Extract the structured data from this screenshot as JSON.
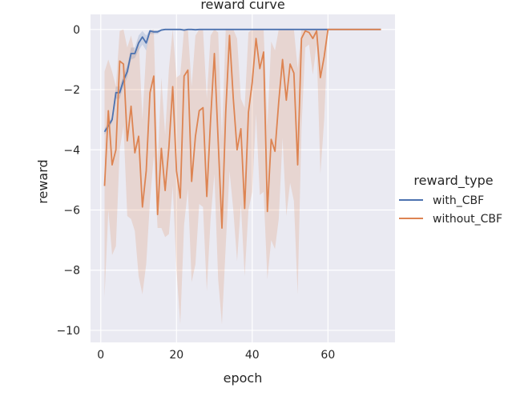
{
  "chart_data": {
    "type": "line",
    "title": "reward curve",
    "xlabel": "epoch",
    "ylabel": "reward",
    "xlim": [
      -2.7,
      77.7
    ],
    "ylim": [
      -10.4,
      0.5
    ],
    "xticks": [
      0,
      20,
      40,
      60
    ],
    "yticks": [
      0,
      -2,
      -4,
      -6,
      -8,
      -10
    ],
    "xtick_labels": [
      "0",
      "20",
      "40",
      "60"
    ],
    "ytick_labels": [
      "0",
      "−2",
      "−4",
      "−6",
      "−8",
      "−10"
    ],
    "grid": true,
    "legend": {
      "title": "reward_type",
      "placement": "right"
    },
    "series": [
      {
        "name": "with_CBF",
        "color": "#4c72b0",
        "x": [
          1,
          2,
          3,
          4,
          5,
          6,
          7,
          8,
          9,
          10,
          11,
          12,
          13,
          14,
          15,
          16,
          17,
          18,
          19,
          20,
          21,
          22,
          23,
          24,
          25,
          26,
          27,
          28,
          29,
          30,
          31,
          32,
          33,
          34,
          35,
          36,
          37,
          38,
          39,
          40,
          41,
          42,
          43,
          44,
          45,
          46,
          47,
          48,
          49,
          50,
          51,
          52,
          53,
          54,
          55,
          56,
          57,
          58,
          59,
          60,
          61,
          62,
          63,
          64,
          65,
          66,
          67,
          68,
          69,
          70,
          71,
          72,
          73,
          74
        ],
        "y": [
          -3.4,
          -3.2,
          -3.0,
          -2.1,
          -2.1,
          -1.7,
          -1.4,
          -0.8,
          -0.8,
          -0.45,
          -0.25,
          -0.45,
          -0.05,
          -0.08,
          -0.08,
          -0.02,
          0,
          0,
          0,
          0,
          0,
          -0.02,
          0,
          0,
          -0.01,
          0,
          0,
          0,
          0,
          0,
          0,
          0,
          0,
          0,
          0,
          0,
          0,
          0,
          0,
          0,
          0,
          0,
          0,
          0,
          0,
          0,
          0,
          0,
          0,
          0,
          0,
          0,
          0,
          0,
          0,
          0,
          0,
          0,
          0,
          0,
          0,
          0,
          0,
          0,
          0,
          0,
          0,
          0,
          0,
          0,
          0,
          0,
          0,
          0
        ],
        "ci_lower": [
          -3.5,
          -3.3,
          -3.1,
          -2.3,
          -2.3,
          -1.9,
          -1.6,
          -1.0,
          -0.95,
          -0.7,
          -0.5,
          -0.7,
          -0.15,
          -0.15,
          -0.15,
          -0.05,
          -0.01,
          -0.01,
          -0.01,
          -0.01,
          -0.01,
          -0.04,
          -0.01,
          -0.01,
          -0.02,
          0,
          0,
          0,
          0,
          0,
          0,
          0,
          0,
          0,
          0,
          0,
          0,
          0,
          0,
          0,
          0,
          0,
          0,
          0,
          0,
          0,
          0,
          0,
          0,
          0,
          0,
          0,
          0,
          0,
          0,
          0,
          0,
          0,
          0,
          0,
          0,
          0,
          0,
          0,
          0,
          0,
          0,
          0,
          0,
          0,
          0,
          0,
          0,
          0
        ],
        "ci_upper": [
          -3.3,
          -3.1,
          -2.9,
          -1.9,
          -1.9,
          -1.5,
          -1.2,
          -0.6,
          -0.6,
          -0.2,
          -0.05,
          -0.2,
          0,
          -0.02,
          -0.02,
          0,
          0,
          0,
          0,
          0,
          0,
          0,
          0,
          0,
          0,
          0,
          0,
          0,
          0,
          0,
          0,
          0,
          0,
          0,
          0,
          0,
          0,
          0,
          0,
          0,
          0,
          0,
          0,
          0,
          0,
          0,
          0,
          0,
          0,
          0,
          0,
          0,
          0,
          0,
          0,
          0,
          0,
          0,
          0,
          0,
          0,
          0,
          0,
          0,
          0,
          0,
          0,
          0,
          0,
          0,
          0,
          0,
          0,
          0
        ]
      },
      {
        "name": "without_CBF",
        "color": "#dd8452",
        "x": [
          1,
          2,
          3,
          4,
          5,
          6,
          7,
          8,
          9,
          10,
          11,
          12,
          13,
          14,
          15,
          16,
          17,
          18,
          19,
          20,
          21,
          22,
          23,
          24,
          25,
          26,
          27,
          28,
          29,
          30,
          31,
          32,
          33,
          34,
          35,
          36,
          37,
          38,
          39,
          40,
          41,
          42,
          43,
          44,
          45,
          46,
          47,
          48,
          49,
          50,
          51,
          52,
          53,
          54,
          55,
          56,
          57,
          58,
          59,
          60,
          61,
          62,
          63,
          64,
          65,
          66,
          67,
          68,
          69,
          70,
          71,
          72,
          73,
          74
        ],
        "y": [
          -5.2,
          -2.7,
          -4.5,
          -4.0,
          -1.05,
          -1.15,
          -3.7,
          -2.55,
          -4.1,
          -3.55,
          -5.9,
          -4.7,
          -2.1,
          -1.55,
          -6.15,
          -3.95,
          -5.35,
          -3.9,
          -1.9,
          -4.7,
          -5.6,
          -1.55,
          -1.35,
          -5.05,
          -3.55,
          -2.7,
          -2.6,
          -5.55,
          -3.0,
          -0.8,
          -3.7,
          -6.6,
          -2.75,
          -0.2,
          -2.3,
          -4.0,
          -3.3,
          -5.95,
          -2.75,
          -1.75,
          -0.3,
          -1.3,
          -0.75,
          -6.05,
          -3.65,
          -4.05,
          -2.4,
          -1.0,
          -2.35,
          -1.15,
          -1.45,
          -4.5,
          -0.3,
          -0.05,
          -0.1,
          -0.3,
          -0.05,
          -1.6,
          -0.9,
          0,
          0,
          0,
          0,
          0,
          0,
          0,
          0,
          0,
          0,
          0,
          0,
          0,
          0,
          0
        ],
        "ci_lower": [
          -8.9,
          -6.0,
          -7.5,
          -7.2,
          -4.0,
          -3.2,
          -6.2,
          -6.3,
          -6.7,
          -8.2,
          -8.8,
          -7.8,
          -5.7,
          -4.2,
          -6.6,
          -6.6,
          -6.9,
          -6.8,
          -5.2,
          -8.0,
          -9.8,
          -6.5,
          -5.3,
          -8.4,
          -7.8,
          -5.8,
          -5.9,
          -8.7,
          -6.3,
          -4.8,
          -8.3,
          -9.8,
          -7.2,
          -4.7,
          -6.0,
          -7.7,
          -5.8,
          -8.2,
          -6.0,
          -5.4,
          -2.8,
          -5.5,
          -5.4,
          -8.3,
          -7.0,
          -7.3,
          -6.3,
          -3.6,
          -6.2,
          -5.1,
          -5.7,
          -8.8,
          -3.3,
          -0.6,
          -0.5,
          -1.5,
          -0.5,
          -4.8,
          -3.0,
          -0.01,
          0,
          0,
          0,
          0,
          0,
          0,
          0,
          0,
          0,
          0,
          0,
          0,
          0,
          0
        ],
        "ci_upper": [
          -1.4,
          -1.0,
          -1.4,
          -1.9,
          -0.05,
          0,
          -0.6,
          -0.2,
          -0.8,
          -0.3,
          -3.0,
          -0.7,
          -0.05,
          0,
          -4.5,
          -1.6,
          -3.5,
          -1.3,
          0,
          -1.6,
          -1.5,
          0,
          0,
          -1.9,
          -0.2,
          0,
          0,
          -2.3,
          -0.2,
          0,
          -0.1,
          -3.6,
          0,
          0,
          0,
          -0.3,
          -2.3,
          -2.6,
          -0.1,
          0,
          0,
          0,
          0,
          -3.2,
          -0.4,
          -0.7,
          0,
          0,
          0,
          0,
          0,
          -1.3,
          0,
          0,
          0,
          0,
          0,
          0,
          0,
          0,
          0,
          0,
          0,
          0,
          0,
          0,
          0,
          0,
          0,
          0,
          0,
          0,
          0,
          0
        ]
      }
    ]
  }
}
